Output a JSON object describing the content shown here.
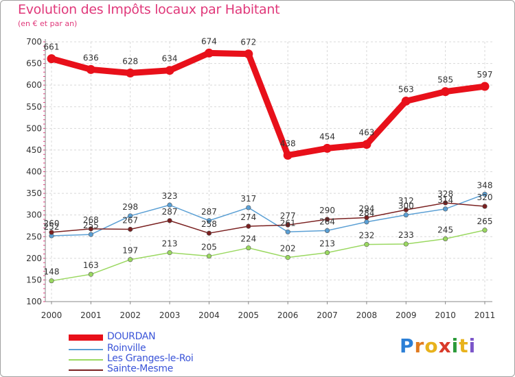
{
  "header": {
    "title": "Evolution des Impôts locaux par Habitant",
    "subtitle": "(en € et par an)"
  },
  "logo": {
    "letters": [
      "P",
      "r",
      "o",
      "x",
      "i",
      "t",
      "i"
    ],
    "colors": [
      "#2b7fd6",
      "#e07a1f",
      "#e8b21c",
      "#d93a2a",
      "#2b9a3a",
      "#e8b21c",
      "#7b55c9"
    ]
  },
  "chart_data": {
    "type": "line",
    "title": "Evolution des Impôts locaux par Habitant",
    "subtitle": "(en € et par an)",
    "xlabel": "",
    "ylabel": "",
    "ylim": [
      100,
      700
    ],
    "yticks": [
      100,
      150,
      200,
      250,
      300,
      350,
      400,
      450,
      500,
      550,
      600,
      650,
      700
    ],
    "categories": [
      "2000",
      "2001",
      "2002",
      "2003",
      "2004",
      "2005",
      "2006",
      "2007",
      "2008",
      "2009",
      "2010",
      "2011"
    ],
    "grid": true,
    "legend_position": "bottom-left",
    "series": [
      {
        "name": "DOURDAN",
        "color": "#e8101a",
        "values": [
          661,
          636,
          628,
          634,
          674,
          672,
          438,
          454,
          463,
          563,
          585,
          597
        ],
        "labels": [
          "661",
          "636",
          "628",
          "634",
          "674",
          "672",
          "438",
          "454",
          "463",
          "563",
          "585",
          "597"
        ],
        "emphasis": true
      },
      {
        "name": "Roinville",
        "color": "#5a9fd4",
        "values": [
          252,
          255,
          298,
          323,
          287,
          317,
          261,
          264,
          284,
          300,
          314,
          348
        ],
        "labels": [
          "252",
          "255",
          "298",
          "323",
          "287",
          "317",
          "261",
          "264",
          "284",
          "300",
          "314",
          "348"
        ]
      },
      {
        "name": "Les Granges-le-Roi",
        "color": "#9ad860",
        "values": [
          148,
          163,
          197,
          213,
          205,
          224,
          202,
          213,
          232,
          233,
          245,
          265
        ],
        "labels": [
          "148",
          "163",
          "197",
          "213",
          "205",
          "224",
          "202",
          "213",
          "232",
          "233",
          "245",
          "265"
        ]
      },
      {
        "name": "Sainte-Mesme",
        "color": "#7a2020",
        "values": [
          260,
          268,
          267,
          287,
          258,
          274,
          277,
          290,
          294,
          312,
          328,
          320
        ],
        "labels": [
          "260",
          "268",
          "267",
          "287",
          "258",
          "274",
          "277",
          "290",
          "294",
          "312",
          "328",
          "320"
        ]
      }
    ]
  }
}
